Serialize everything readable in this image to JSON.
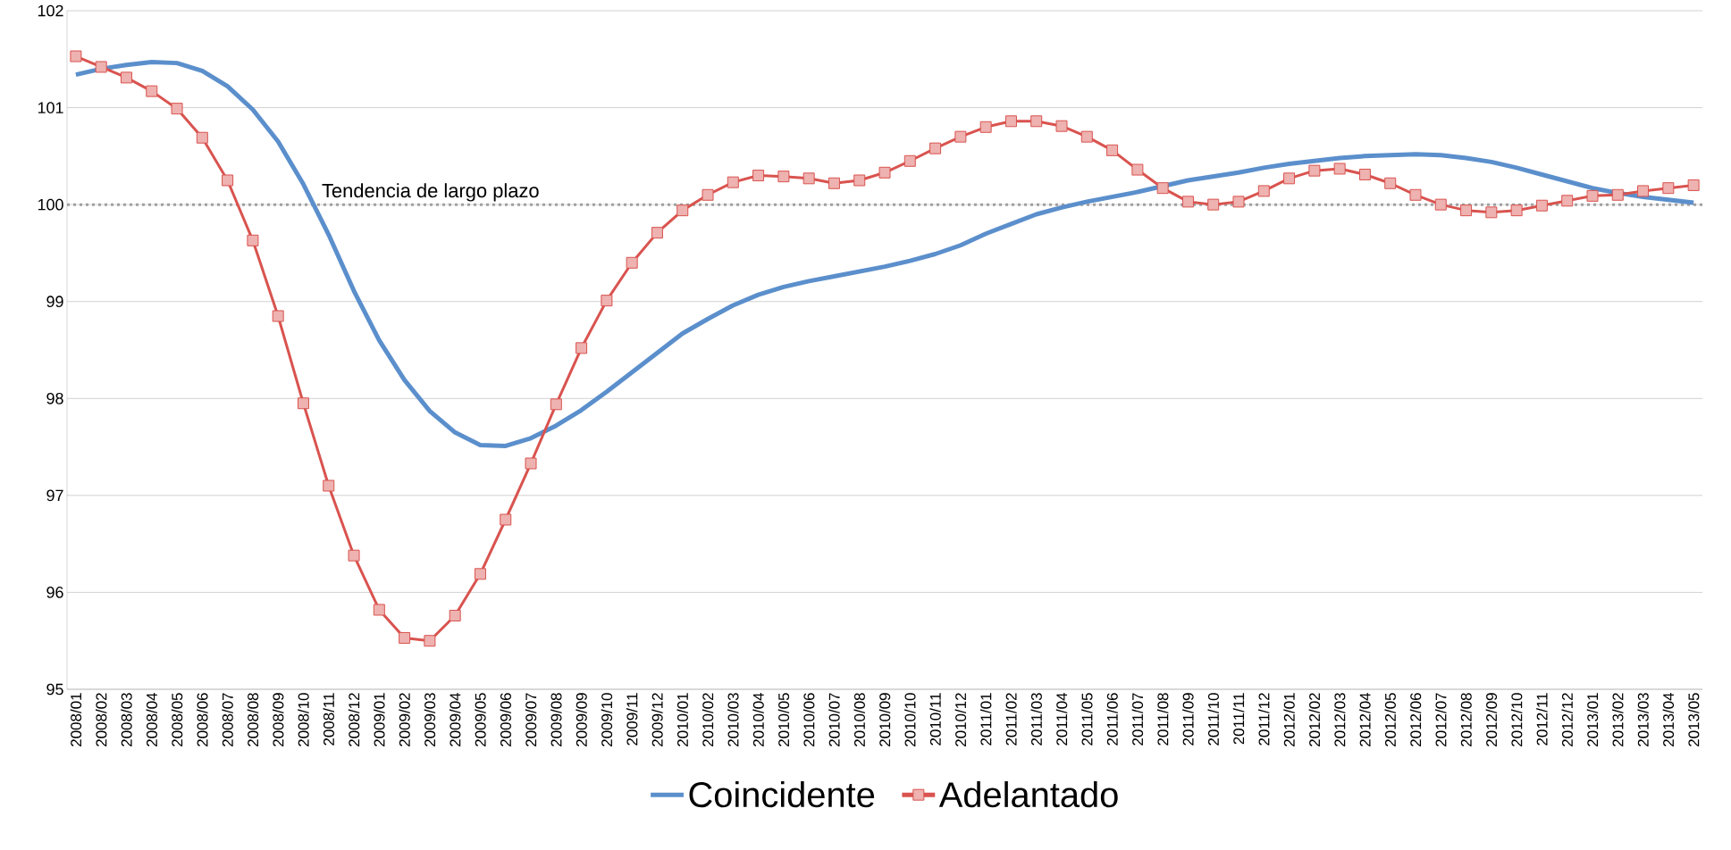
{
  "chart_data": {
    "type": "line",
    "categories": [
      "2008/01",
      "2008/02",
      "2008/03",
      "2008/04",
      "2008/05",
      "2008/06",
      "2008/07",
      "2008/08",
      "2008/09",
      "2008/10",
      "2008/11",
      "2008/12",
      "2009/01",
      "2009/02",
      "2009/03",
      "2009/04",
      "2009/05",
      "2009/06",
      "2009/07",
      "2009/08",
      "2009/09",
      "2009/10",
      "2009/11",
      "2009/12",
      "2010/01",
      "2010/02",
      "2010/03",
      "2010/04",
      "2010/05",
      "2010/06",
      "2010/07",
      "2010/08",
      "2010/09",
      "2010/10",
      "2010/11",
      "2010/12",
      "2011/01",
      "2011/02",
      "2011/03",
      "2011/04",
      "2011/05",
      "2011/06",
      "2011/07",
      "2011/08",
      "2011/09",
      "2011/10",
      "2011/11",
      "2011/12",
      "2012/01",
      "2012/02",
      "2012/03",
      "2012/04",
      "2012/05",
      "2012/06",
      "2012/07",
      "2012/08",
      "2012/09",
      "2012/10",
      "2012/11",
      "2012/12",
      "2013/01",
      "2013/02",
      "2013/03",
      "2013/04",
      "2013/05"
    ],
    "series": [
      {
        "name": "Coincidente",
        "color": "#5b8fcc",
        "marker": "none",
        "values": [
          101.34,
          101.4,
          101.44,
          101.47,
          101.46,
          101.38,
          101.22,
          100.98,
          100.65,
          100.21,
          99.69,
          99.11,
          98.6,
          98.19,
          97.87,
          97.65,
          97.52,
          97.51,
          97.59,
          97.72,
          97.88,
          98.07,
          98.27,
          98.47,
          98.67,
          98.82,
          98.96,
          99.07,
          99.15,
          99.21,
          99.26,
          99.31,
          99.36,
          99.42,
          99.49,
          99.58,
          99.7,
          99.8,
          99.9,
          99.97,
          100.03,
          100.08,
          100.13,
          100.19,
          100.25,
          100.29,
          100.33,
          100.38,
          100.42,
          100.45,
          100.48,
          100.5,
          100.51,
          100.52,
          100.51,
          100.48,
          100.44,
          100.38,
          100.31,
          100.24,
          100.17,
          100.12,
          100.08,
          100.05,
          100.02
        ]
      },
      {
        "name": "Adelantado",
        "color": "#d9534f",
        "marker": "square",
        "values": [
          101.53,
          101.42,
          101.31,
          101.17,
          100.99,
          100.69,
          100.25,
          99.63,
          98.85,
          97.95,
          97.1,
          96.38,
          95.82,
          95.53,
          95.5,
          95.76,
          96.19,
          96.75,
          97.33,
          97.94,
          98.52,
          99.01,
          99.4,
          99.71,
          99.94,
          100.1,
          100.23,
          100.3,
          100.29,
          100.27,
          100.22,
          100.25,
          100.33,
          100.45,
          100.58,
          100.7,
          100.8,
          100.86,
          100.86,
          100.81,
          100.7,
          100.56,
          100.36,
          100.17,
          100.03,
          100.0,
          100.03,
          100.14,
          100.27,
          100.35,
          100.37,
          100.31,
          100.22,
          100.1,
          100.0,
          99.94,
          99.92,
          99.94,
          99.99,
          100.04,
          100.09,
          100.1,
          100.14,
          100.17,
          100.2
        ]
      }
    ],
    "ylim": [
      95,
      102
    ],
    "yticks": [
      95,
      96,
      97,
      98,
      99,
      100,
      101,
      102
    ],
    "ref_lines": [
      {
        "axis": "y",
        "value": 100,
        "label": "Tendencia de largo plazo",
        "color": "#a0a0a0",
        "line_style": "dotted"
      }
    ],
    "grid": "y",
    "legend": "bottom"
  }
}
